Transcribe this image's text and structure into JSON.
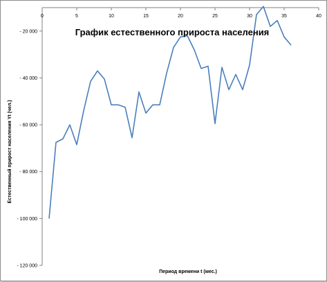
{
  "chart_data": {
    "type": "line",
    "title": "График естественного прироста населения",
    "xlabel": "Период времени t  (мес.)",
    "ylabel": "Естественный прирост населения Yt (чел.)",
    "xlim": [
      0,
      40
    ],
    "ylim": [
      -120000,
      -10000
    ],
    "x_ticks": [
      0,
      5,
      10,
      15,
      20,
      25,
      30,
      35,
      40
    ],
    "y_ticks": [
      -20000,
      -40000,
      -60000,
      -80000,
      -100000,
      -120000
    ],
    "x_tick_labels": [
      "0",
      "5",
      "10",
      "15",
      "20",
      "25",
      "30",
      "35",
      "40"
    ],
    "y_tick_labels": [
      "- 20 000",
      "- 40 000",
      "- 60 000",
      "- 80 000",
      "- 100 000",
      "- 120 000"
    ],
    "x_axis_position": "top",
    "grid": false,
    "legend": "none",
    "line_color": "#4a7ebb",
    "series": [
      {
        "x": [
          1,
          2,
          3,
          4,
          5,
          6,
          7,
          8,
          9,
          10,
          11,
          12,
          13,
          14,
          15,
          16,
          17,
          18,
          19,
          20,
          21,
          22,
          23,
          24,
          25,
          26,
          27,
          28,
          29,
          30,
          31,
          32,
          33,
          34,
          35,
          36
        ],
        "values": [
          -100000,
          -67500,
          -66000,
          -60000,
          -68500,
          -54000,
          -41500,
          -37000,
          -40500,
          -51500,
          -51500,
          -52500,
          -65500,
          -46000,
          -55000,
          -51500,
          -51500,
          -38000,
          -27000,
          -22500,
          -22000,
          -28000,
          -36000,
          -35000,
          -59500,
          -35500,
          -45000,
          -38500,
          -45000,
          -34500,
          -13000,
          -9500,
          -18000,
          -15500,
          -22500,
          -26000
        ]
      }
    ]
  }
}
